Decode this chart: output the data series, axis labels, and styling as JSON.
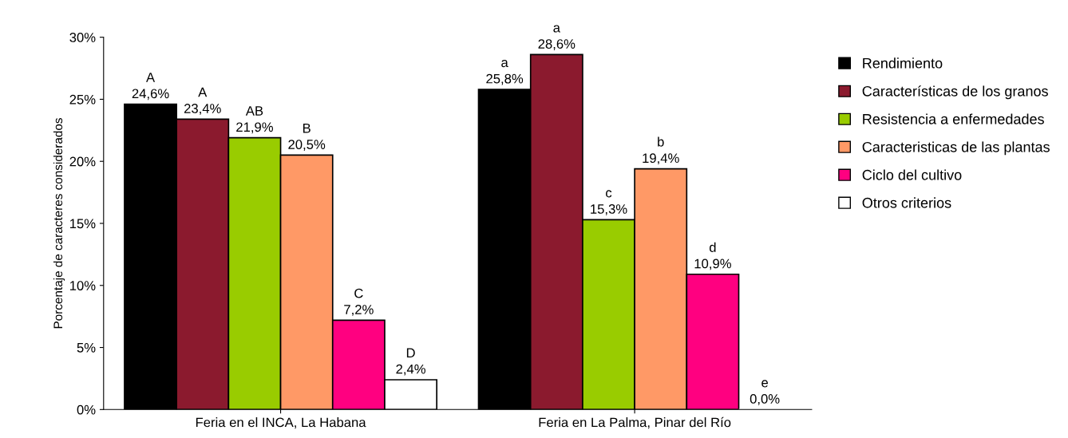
{
  "chart_data": {
    "type": "bar",
    "ylabel": "Porcentaje de caracteres considerados",
    "categories": [
      "Feria en el INCA, La Habana",
      "Feria en La Palma, Pinar del Río"
    ],
    "series": [
      {
        "name": "Rendimiento",
        "color": "#000000",
        "values": [
          24.6,
          25.8
        ],
        "value_labels": [
          "A\n24,6%",
          "a\n25,8%"
        ]
      },
      {
        "name": "Características de los granos",
        "color": "#8b1a2e",
        "values": [
          23.4,
          28.6
        ],
        "value_labels": [
          "A\n23,4%",
          "a\n28,6%"
        ]
      },
      {
        "name": "Resistencia a enfermedades",
        "color": "#99cc00",
        "values": [
          21.9,
          15.3
        ],
        "value_labels": [
          "AB\n21,9%",
          "c\n15,3%"
        ]
      },
      {
        "name": "Caracteristicas de las plantas",
        "color": "#ff9966",
        "values": [
          20.5,
          19.4
        ],
        "value_labels": [
          "B\n20,5%",
          "b\n19,4%"
        ]
      },
      {
        "name": "Ciclo del cultivo",
        "color": "#ff0080",
        "values": [
          7.2,
          10.9
        ],
        "value_labels": [
          "C\n7,2%",
          "d\n10,9%"
        ]
      },
      {
        "name": "Otros criterios",
        "color": "#ffffff",
        "values": [
          2.4,
          0.0
        ],
        "value_labels": [
          "D\n2,4%",
          "e\n0,0%"
        ]
      }
    ],
    "ylim": [
      0,
      30
    ],
    "yticks": [
      {
        "value": 0,
        "label": "0%"
      },
      {
        "value": 5,
        "label": "5%"
      },
      {
        "value": 10,
        "label": "10%"
      },
      {
        "value": 15,
        "label": "15%"
      },
      {
        "value": 20,
        "label": "20%"
      },
      {
        "value": 25,
        "label": "25%"
      },
      {
        "value": 30,
        "label": "30%"
      }
    ],
    "grid": false,
    "legend": "right"
  }
}
